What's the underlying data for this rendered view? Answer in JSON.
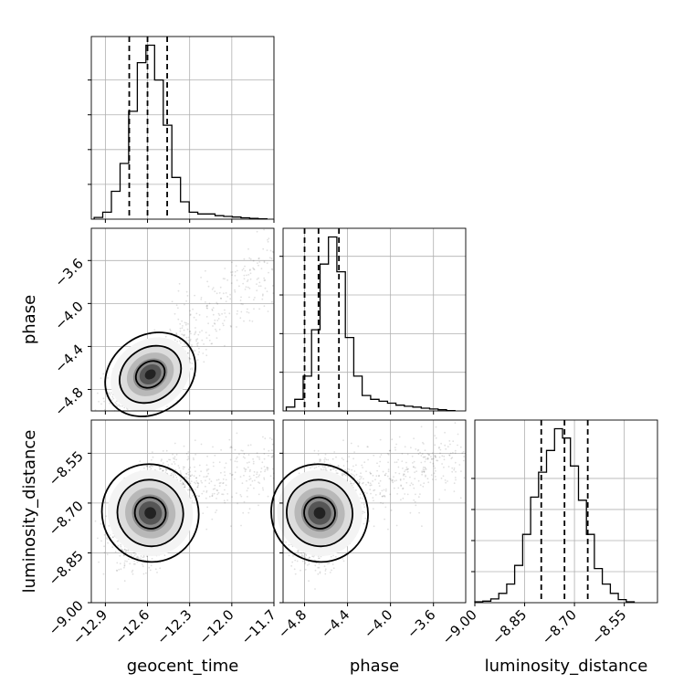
{
  "chart_data": {
    "type": "corner",
    "parameters": [
      {
        "name": "geocent_time",
        "range": [
          -13.0,
          -11.7
        ],
        "ticks": [
          -12.9,
          -12.6,
          -12.3,
          -12.0,
          -11.7
        ],
        "tick_labels": [
          "−12.9",
          "−12.6",
          "−12.3",
          "−12.0",
          "−11.7"
        ],
        "quantiles": [
          -12.73,
          -12.6,
          -12.46
        ],
        "mean": -12.58,
        "sd": 0.13
      },
      {
        "name": "phase",
        "range": [
          -5.0,
          -3.3
        ],
        "ticks": [
          -4.8,
          -4.4,
          -4.0,
          -3.6
        ],
        "tick_labels": [
          "−4.8",
          "−4.4",
          "−4.0",
          "−3.6"
        ],
        "quantiles": [
          -4.8,
          -4.67,
          -4.48
        ],
        "mean": -4.66,
        "sd": 0.17
      },
      {
        "name": "luminosity_distance",
        "range": [
          -9.0,
          -8.45
        ],
        "ticks": [
          -9.0,
          -8.85,
          -8.7,
          -8.55
        ],
        "tick_labels": [
          "−9.00",
          "−8.85",
          "−8.70",
          "−8.55"
        ],
        "quantiles": [
          -8.8,
          -8.73,
          -8.66
        ],
        "mean": -8.73,
        "sd": 0.07
      }
    ],
    "y_tick_labels": {
      "phase": [
        "−3.6",
        "−4.0",
        "−4.4",
        "−4.8"
      ],
      "luminosity_distance": [
        "−8.55",
        "−8.70",
        "−8.85",
        "−9.00"
      ]
    },
    "histograms": {
      "geocent_time": [
        0.5,
        2,
        8,
        16,
        31,
        45,
        50,
        40,
        27,
        12,
        5,
        2,
        1.5,
        1.5,
        1,
        0.8,
        0.6,
        0.4,
        0.2,
        0.1
      ],
      "phase": [
        1,
        3,
        9,
        21,
        38,
        45,
        36,
        19,
        9,
        4,
        3,
        2.5,
        2,
        1.5,
        1.2,
        1,
        0.7,
        0.5,
        0.3,
        0.1
      ],
      "luminosity_distance": [
        0.3,
        0.5,
        1.2,
        3,
        6,
        12,
        22,
        34,
        42,
        49,
        56,
        53,
        44,
        33,
        22,
        11,
        6,
        3,
        1,
        0.3
      ]
    },
    "histogram_counts_visible": false,
    "grid": true,
    "contour_levels": [
      0.39,
      0.86,
      0.99
    ]
  }
}
